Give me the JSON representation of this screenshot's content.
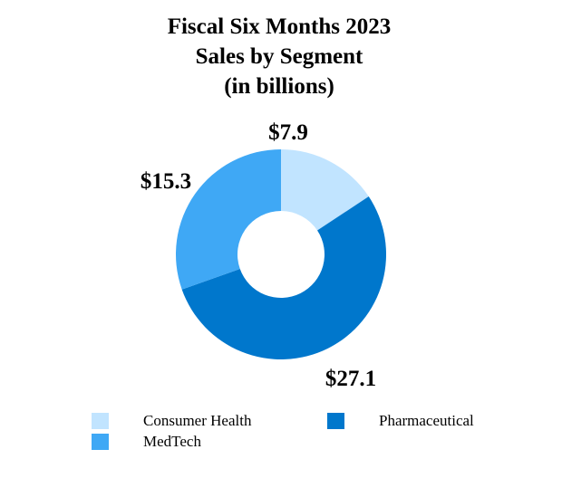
{
  "chart_data": {
    "type": "pie",
    "style": "donut",
    "title": [
      "Fiscal Six Months 2023",
      "Sales by Segment",
      "(in billions)"
    ],
    "categories": [
      "Consumer Health",
      "Pharmaceutical",
      "MedTech"
    ],
    "values": [
      7.9,
      27.1,
      15.3
    ],
    "data_labels": [
      "$7.9",
      "$27.1",
      "$15.3"
    ],
    "colors": [
      "#C1E4FF",
      "#0077CC",
      "#3FA8F5"
    ],
    "legend_position": "bottom"
  }
}
